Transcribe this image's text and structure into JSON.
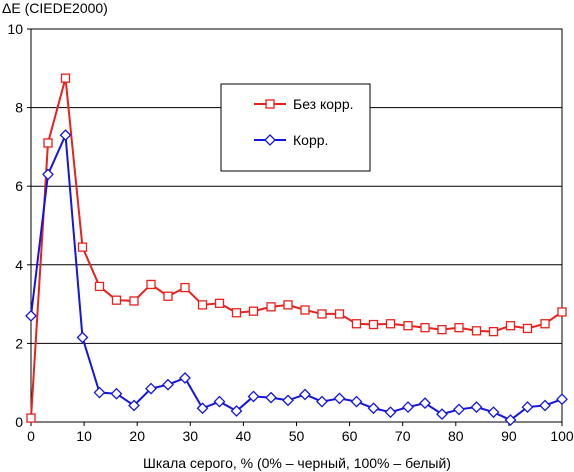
{
  "chart_data": {
    "type": "line",
    "ylabel": "ΔE (CIEDE2000)",
    "xlabel": "Шкала серого, % (0% – черный, 100% – белый)",
    "xlim": [
      0,
      100
    ],
    "ylim": [
      0,
      10
    ],
    "xticks": [
      0,
      10,
      20,
      30,
      40,
      50,
      60,
      70,
      80,
      90,
      100
    ],
    "yticks": [
      0,
      2,
      4,
      6,
      8,
      10
    ],
    "grid": "horizontal",
    "legend_position": "top-center",
    "x": [
      0,
      3.2,
      6.5,
      9.7,
      12.9,
      16.1,
      19.4,
      22.6,
      25.8,
      29.0,
      32.3,
      35.5,
      38.7,
      41.9,
      45.2,
      48.4,
      51.6,
      54.8,
      58.1,
      61.3,
      64.5,
      67.7,
      71.0,
      74.2,
      77.4,
      80.6,
      83.9,
      87.1,
      90.3,
      93.5,
      96.8,
      100
    ],
    "series": [
      {
        "name": "Без корр.",
        "color": "#e8211c",
        "marker": "square",
        "values": [
          0.1,
          7.1,
          8.75,
          4.45,
          3.45,
          3.1,
          3.08,
          3.5,
          3.2,
          3.42,
          2.98,
          3.02,
          2.78,
          2.82,
          2.93,
          2.98,
          2.85,
          2.75,
          2.75,
          2.5,
          2.48,
          2.5,
          2.45,
          2.4,
          2.35,
          2.4,
          2.32,
          2.3,
          2.45,
          2.38,
          2.5,
          2.8
        ]
      },
      {
        "name": "Корр.",
        "color": "#1515e0",
        "marker": "diamond",
        "values": [
          2.7,
          6.3,
          7.3,
          2.15,
          0.75,
          0.72,
          0.42,
          0.85,
          0.95,
          1.12,
          0.35,
          0.52,
          0.28,
          0.65,
          0.62,
          0.55,
          0.7,
          0.52,
          0.6,
          0.52,
          0.35,
          0.25,
          0.38,
          0.48,
          0.2,
          0.32,
          0.38,
          0.25,
          0.05,
          0.38,
          0.42,
          0.58
        ]
      }
    ]
  }
}
